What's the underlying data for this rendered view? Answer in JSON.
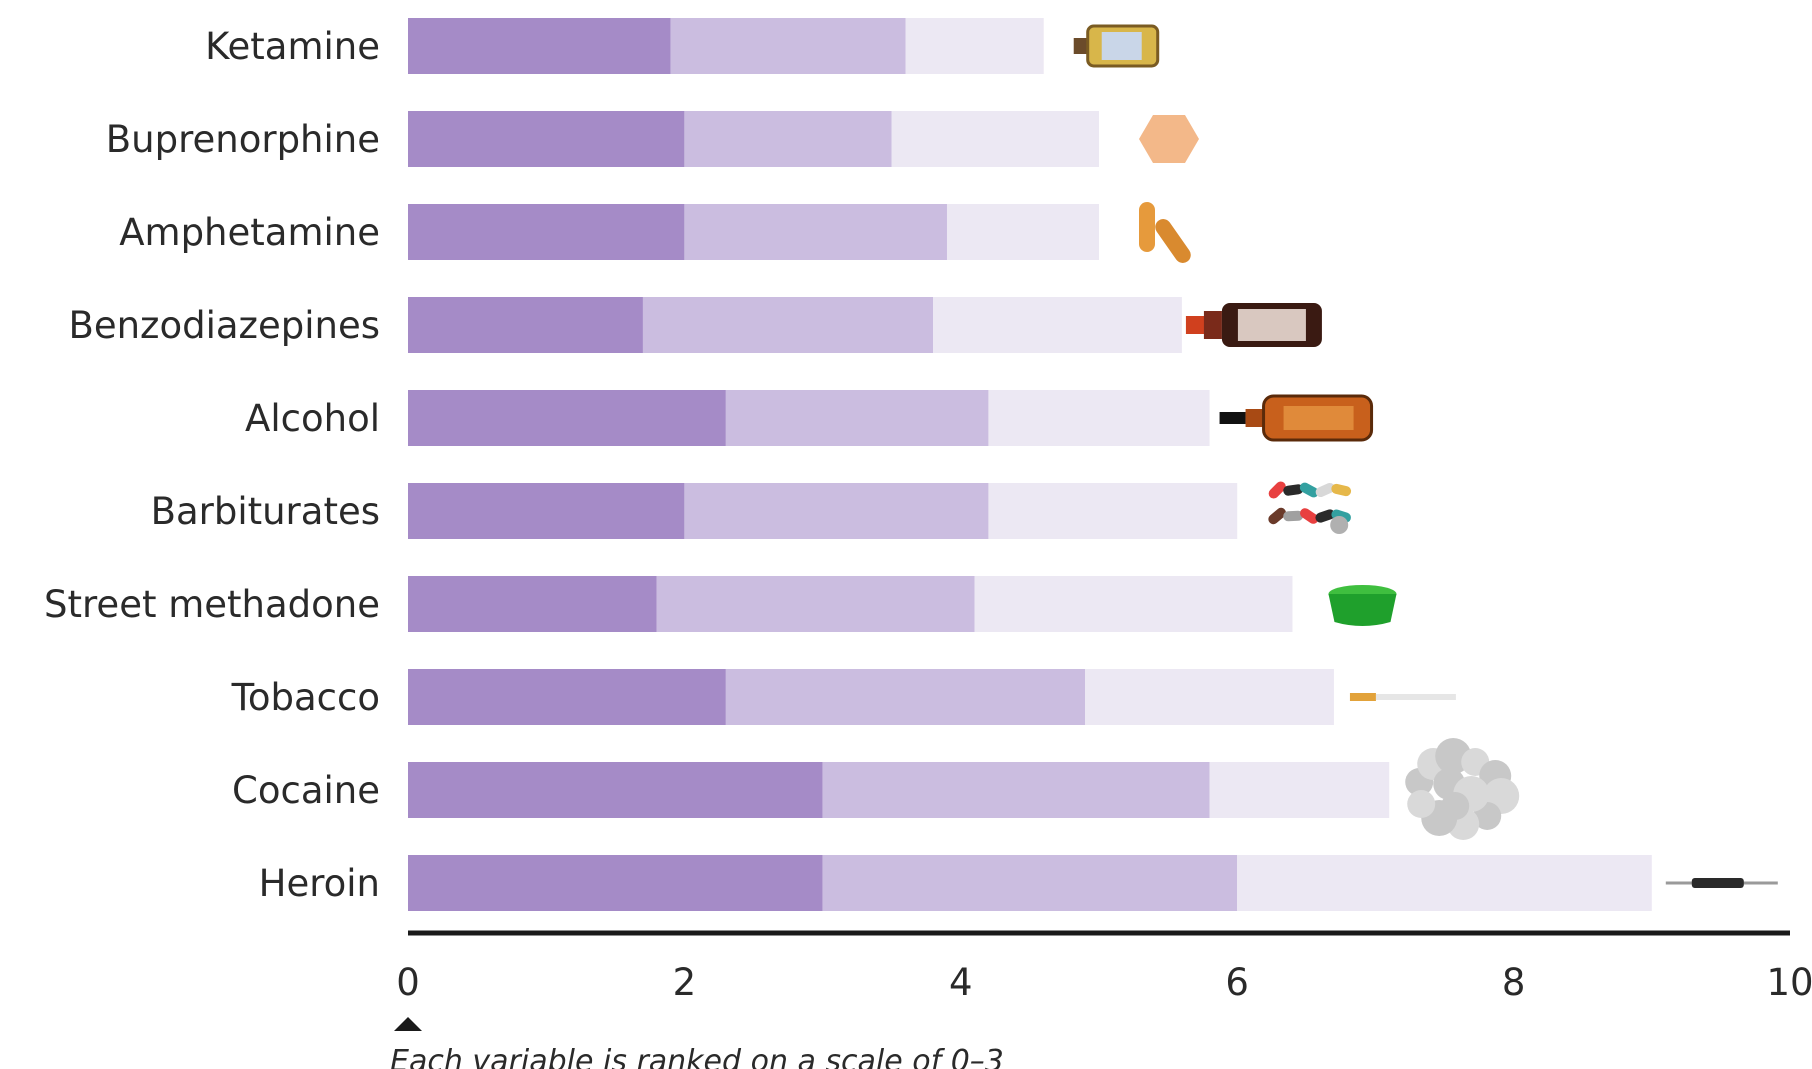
{
  "chart_data": {
    "type": "bar",
    "stacked": true,
    "orientation": "horizontal",
    "categories": [
      "Ketamine",
      "Buprenorphine",
      "Amphetamine",
      "Benzodiazepines",
      "Alcohol",
      "Barbiturates",
      "Street methadone",
      "Tobacco",
      "Cocaine",
      "Heroin"
    ],
    "series": [
      {
        "values": [
          1.9,
          2.0,
          2.0,
          1.7,
          2.3,
          2.0,
          1.8,
          2.3,
          3.0,
          3.0
        ]
      },
      {
        "values": [
          1.7,
          1.5,
          1.9,
          2.1,
          1.9,
          2.2,
          2.3,
          2.6,
          2.8,
          3.0
        ]
      },
      {
        "values": [
          1.0,
          1.5,
          1.1,
          1.8,
          1.6,
          1.8,
          2.3,
          1.8,
          1.3,
          3.0
        ]
      }
    ],
    "colors": [
      "#a58bc7",
      "#cbbde0",
      "#ece8f3"
    ],
    "xlim": [
      0,
      10
    ],
    "xticks": [
      "0",
      "2",
      "4",
      "6",
      "8",
      "10"
    ],
    "note": "Each variable is ranked on a scale of 0–3",
    "icons": [
      "vial-icon",
      "pill-icon",
      "capsule-icon",
      "bottle-icon",
      "bottle-icon",
      "pills-icon",
      "cup-icon",
      "cigarette-icon",
      "powder-icon",
      "syringe-icon"
    ]
  }
}
